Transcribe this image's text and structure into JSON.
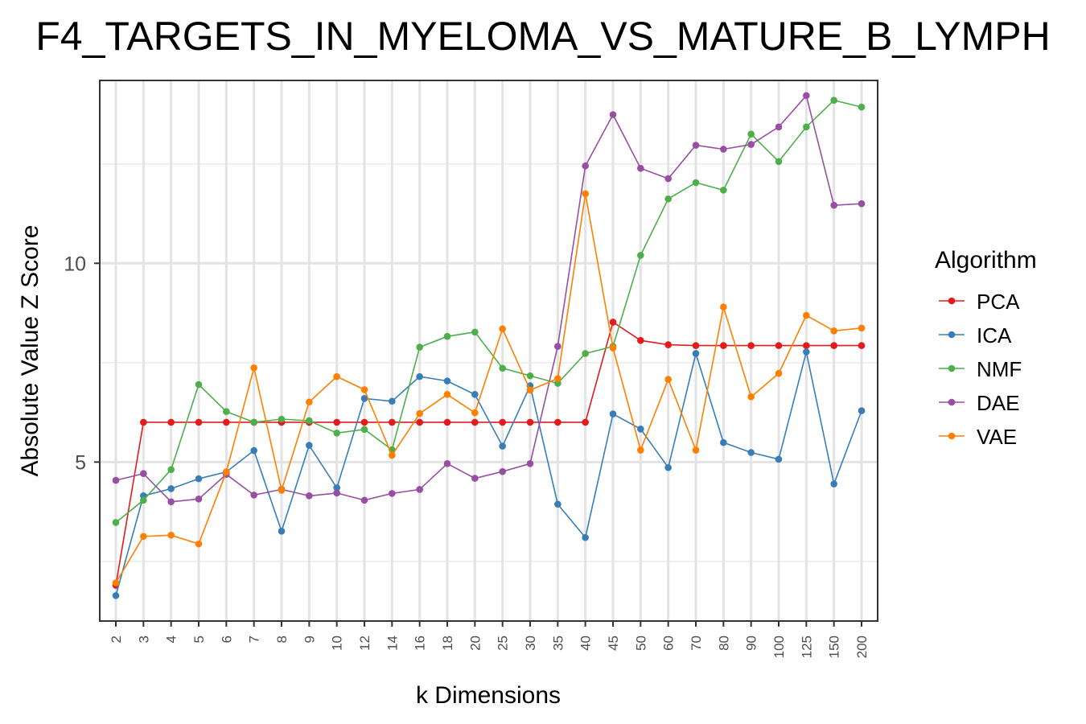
{
  "chart_data": {
    "type": "line",
    "title": "F4_TARGETS_IN_MYELOMA_VS_MATURE_B_LYMPH",
    "xlabel": "k Dimensions",
    "ylabel": "Absolute Value Z Score",
    "categories": [
      "2",
      "3",
      "4",
      "5",
      "6",
      "7",
      "8",
      "9",
      "10",
      "12",
      "14",
      "16",
      "18",
      "20",
      "25",
      "30",
      "35",
      "40",
      "45",
      "50",
      "60",
      "70",
      "80",
      "90",
      "100",
      "125",
      "150",
      "200"
    ],
    "ylim": [
      1.0,
      14.6
    ],
    "y_ticks": [
      {
        "value": 5,
        "label": "5"
      },
      {
        "value": 10,
        "label": "10"
      }
    ],
    "grid": true,
    "legend_title": "Algorithm",
    "legend_position": "right",
    "series": [
      {
        "name": "PCA",
        "color": "#E41A1C",
        "values": [
          1.9,
          6.0,
          6.0,
          6.0,
          6.0,
          6.0,
          6.0,
          6.0,
          6.0,
          6.0,
          6.0,
          6.0,
          6.0,
          6.0,
          6.0,
          6.0,
          6.0,
          6.0,
          8.52,
          8.06,
          7.95,
          7.93,
          7.93,
          7.93,
          7.93,
          7.93,
          7.93,
          7.93
        ]
      },
      {
        "name": "ICA",
        "color": "#377EB8",
        "values": [
          1.64,
          4.15,
          4.33,
          4.58,
          4.75,
          5.29,
          3.26,
          5.42,
          4.35,
          6.6,
          6.53,
          7.15,
          7.04,
          6.7,
          5.4,
          6.92,
          3.94,
          3.1,
          6.21,
          5.83,
          4.86,
          7.73,
          5.49,
          5.24,
          5.07,
          7.77,
          4.45,
          6.29
        ]
      },
      {
        "name": "NMF",
        "color": "#4DAF4A",
        "values": [
          3.48,
          4.04,
          4.81,
          6.95,
          6.27,
          6.0,
          6.08,
          6.04,
          5.73,
          5.82,
          5.31,
          7.89,
          8.16,
          8.27,
          7.36,
          7.17,
          6.98,
          7.73,
          7.91,
          10.2,
          11.62,
          12.03,
          11.84,
          13.25,
          12.56,
          13.43,
          14.1,
          13.93
        ]
      },
      {
        "name": "DAE",
        "color": "#984EA3",
        "values": [
          4.54,
          4.71,
          4.0,
          4.07,
          4.69,
          4.17,
          4.31,
          4.15,
          4.22,
          4.04,
          4.21,
          4.31,
          4.96,
          4.59,
          4.76,
          4.96,
          7.91,
          12.45,
          13.74,
          12.39,
          12.13,
          12.97,
          12.87,
          12.99,
          13.43,
          14.22,
          11.46,
          11.5
        ]
      },
      {
        "name": "VAE",
        "color": "#FF7F00",
        "values": [
          1.96,
          3.13,
          3.16,
          2.94,
          4.75,
          7.37,
          4.29,
          6.51,
          7.15,
          6.82,
          5.17,
          6.22,
          6.7,
          6.24,
          8.35,
          6.81,
          7.1,
          11.75,
          7.87,
          5.3,
          7.08,
          5.3,
          8.9,
          6.64,
          7.23,
          8.69,
          8.3,
          8.37
        ]
      }
    ]
  }
}
